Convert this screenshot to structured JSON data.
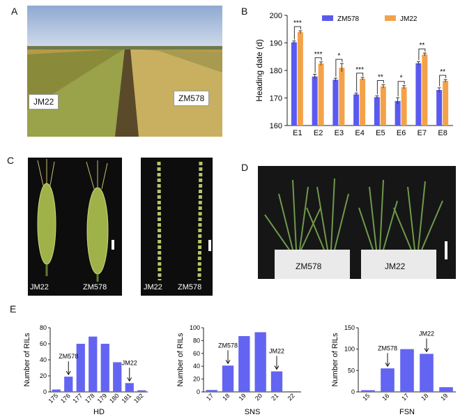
{
  "panels": {
    "a": "A",
    "b": "B",
    "c": "C",
    "d": "D",
    "e": "E"
  },
  "photoA": {
    "left_label": "JM22",
    "right_label": "ZM578"
  },
  "photoC": {
    "spike_left": "JM22",
    "spike_right": "ZM578",
    "rachis_left": "JM22",
    "rachis_right": "ZM578"
  },
  "photoD": {
    "left_label": "ZM578",
    "right_label": "JM22"
  },
  "colors": {
    "zm578": "#5a5af0",
    "jm22": "#f4a24a",
    "hist": "#6464f2"
  },
  "chart_data": [
    {
      "type": "bar",
      "categories": [
        "E1",
        "E2",
        "E3",
        "E4",
        "E5",
        "E6",
        "E7",
        "E8"
      ],
      "series": [
        {
          "name": "ZM578",
          "values": [
            190.2,
            177.8,
            176.6,
            171.3,
            170.3,
            168.9,
            182.6,
            172.9
          ]
        },
        {
          "name": "JM22",
          "values": [
            193.9,
            182.5,
            181.0,
            177.0,
            174.2,
            173.9,
            185.8,
            176.2
          ]
        }
      ],
      "errors": [
        [
          0.5,
          0.8,
          0.6,
          0.5,
          0.5,
          1.2,
          0.6,
          0.8
        ],
        [
          0.5,
          0.6,
          1.5,
          0.5,
          0.6,
          0.6,
          0.5,
          0.5
        ]
      ],
      "significance": [
        "***",
        "***",
        "*",
        "***",
        "**",
        "*",
        "**",
        "**"
      ],
      "ylabel": "Heading date (d)",
      "ylim": [
        160,
        200
      ],
      "yticks": [
        160,
        170,
        180,
        190,
        200
      ],
      "legend": "top-right"
    },
    {
      "type": "bar",
      "categories": [
        "175",
        "176",
        "177",
        "178",
        "179",
        "180",
        "181",
        "182"
      ],
      "values": [
        3,
        19,
        60,
        69,
        60,
        37,
        11,
        2
      ],
      "xlabel": "HD",
      "ylabel": "Number of RILs",
      "ylim": [
        0,
        80
      ],
      "yticks": [
        0,
        20,
        40,
        60,
        80
      ],
      "annotations": [
        {
          "text": "ZM578",
          "index": 1
        },
        {
          "text": "JM22",
          "index": 6
        }
      ]
    },
    {
      "type": "bar",
      "categories": [
        "17",
        "18",
        "19",
        "20",
        "21",
        "22"
      ],
      "values": [
        3,
        41,
        87,
        93,
        32,
        1
      ],
      "xlabel": "SNS",
      "ylabel": "Number of RILs",
      "ylim": [
        0,
        100
      ],
      "yticks": [
        0,
        20,
        40,
        60,
        80,
        100
      ],
      "annotations": [
        {
          "text": "ZM578",
          "index": 1
        },
        {
          "text": "JM22",
          "index": 4
        }
      ]
    },
    {
      "type": "bar",
      "categories": [
        "15",
        "16",
        "17",
        "18",
        "19"
      ],
      "values": [
        4,
        55,
        100,
        89,
        11
      ],
      "xlabel": "FSN",
      "ylabel": "Number of RILs",
      "ylim": [
        0,
        150
      ],
      "yticks": [
        0,
        50,
        100,
        150
      ],
      "annotations": [
        {
          "text": "ZM578",
          "index": 1
        },
        {
          "text": "JM22",
          "index": 3
        }
      ]
    }
  ]
}
